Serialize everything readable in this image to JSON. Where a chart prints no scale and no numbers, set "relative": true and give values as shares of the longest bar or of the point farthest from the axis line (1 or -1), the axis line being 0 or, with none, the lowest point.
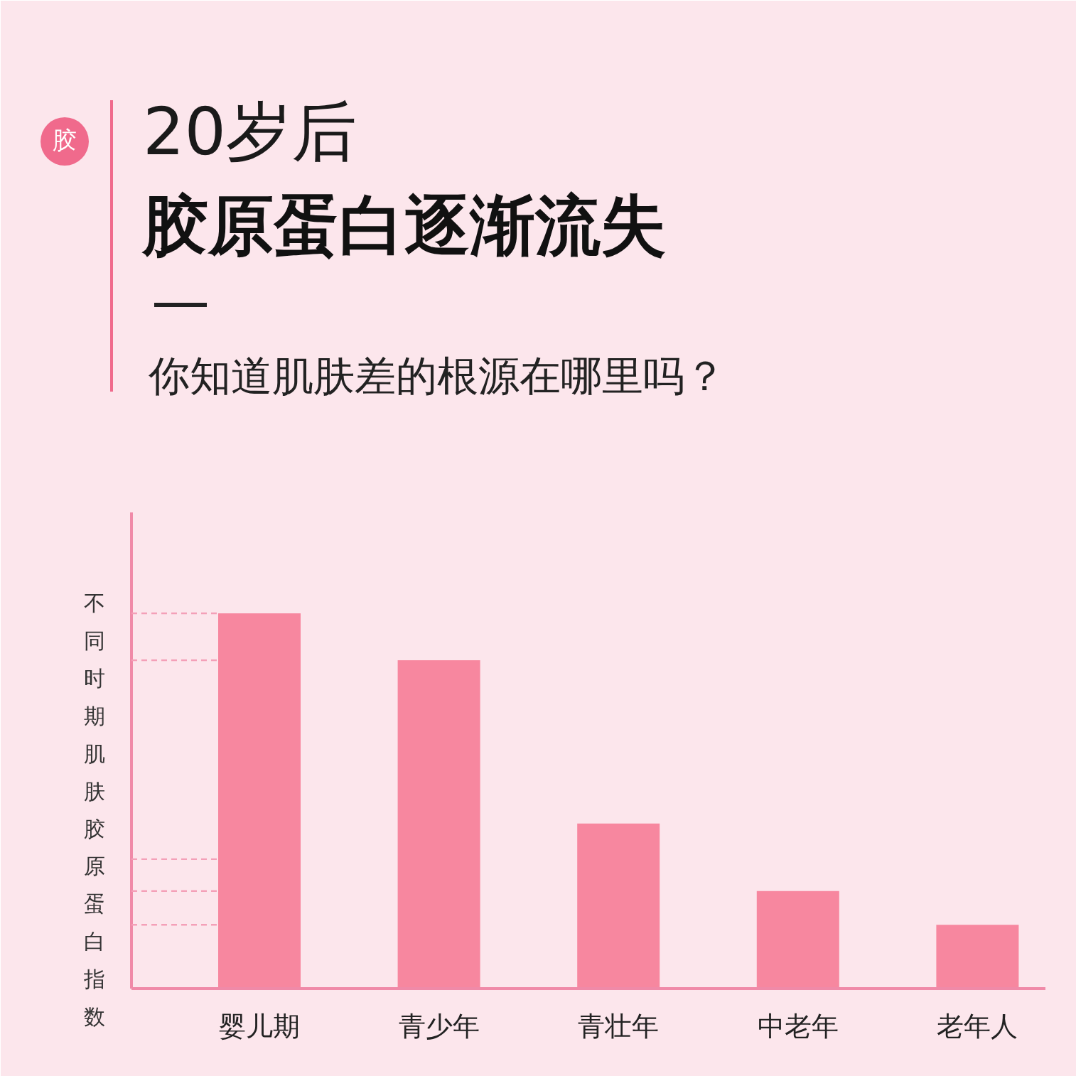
{
  "chart_data": {
    "type": "bar",
    "title": "20岁后",
    "subtitle": "胶原蛋白逐渐流失",
    "ylabel": "不同时期肌肤胶原蛋白指数",
    "categories": [
      "婴儿期",
      "青少年",
      "青壮年",
      "中老年",
      "老年人"
    ],
    "values": [
      1,
      0.875,
      0.44,
      0.26,
      0.17
    ],
    "relative": true,
    "color": "#f7879f",
    "ref_lines": [
      {
        "axis": "y",
        "value": 1,
        "color": "#f4a0b8",
        "line_style": "dashed"
      },
      {
        "axis": "y",
        "value": 0.875,
        "color": "#f4a0b8",
        "line_style": "dashed"
      },
      {
        "axis": "y",
        "value": 0.345,
        "color": "#f4a0b8",
        "line_style": "dashed"
      },
      {
        "axis": "y",
        "value": 0.26,
        "color": "#f4a0b8",
        "line_style": "dashed"
      },
      {
        "axis": "y",
        "value": 0.17,
        "color": "#f4a0b8",
        "line_style": "dashed"
      }
    ],
    "annotations": [
      "胶",
      "你知道肌肤差的根源在哪里吗？"
    ],
    "grid": false
  }
}
